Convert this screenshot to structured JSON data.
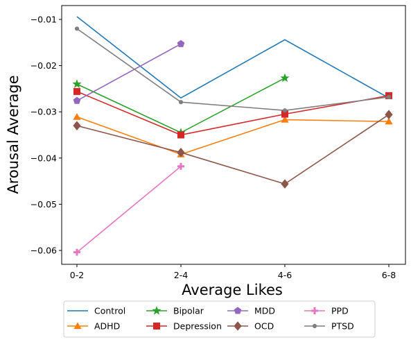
{
  "chart_data": {
    "type": "line",
    "categories": [
      "0-2",
      "2-4",
      "4-6",
      "6-8"
    ],
    "xlabel": "Average Likes",
    "ylabel": "Arousal Average",
    "ylim": [
      -0.063,
      -0.007
    ],
    "yticks": [
      -0.01,
      -0.02,
      -0.03,
      -0.04,
      -0.05,
      -0.06
    ],
    "ytick_labels": [
      "−0.01",
      "−0.02",
      "−0.03",
      "−0.04",
      "−0.05",
      "−0.06"
    ],
    "legend_position": "below",
    "series": [
      {
        "name": "Control",
        "color": "#1f77b4",
        "marker": "none",
        "values": [
          -0.0094,
          -0.027,
          -0.0144,
          -0.027
        ]
      },
      {
        "name": "ADHD",
        "color": "#ff7f0e",
        "marker": "triangle",
        "values": [
          -0.0311,
          -0.0392,
          -0.0317,
          -0.0321
        ]
      },
      {
        "name": "Bipolar",
        "color": "#2ca02c",
        "marker": "star",
        "values": [
          -0.024,
          -0.0345,
          -0.0227,
          null
        ]
      },
      {
        "name": "Depression",
        "color": "#d62728",
        "marker": "square",
        "values": [
          -0.0256,
          -0.035,
          -0.0305,
          -0.0265
        ]
      },
      {
        "name": "MDD",
        "color": "#9467bd",
        "marker": "pentagon",
        "values": [
          -0.0276,
          -0.0153,
          null,
          null
        ]
      },
      {
        "name": "OCD",
        "color": "#8c564b",
        "marker": "diamond",
        "values": [
          -0.033,
          -0.0388,
          -0.0456,
          -0.0306
        ]
      },
      {
        "name": "PPD",
        "color": "#e377c2",
        "marker": "plus",
        "values": [
          -0.0604,
          -0.0418,
          null,
          null
        ]
      },
      {
        "name": "PTSD",
        "color": "#7f7f7f",
        "marker": "dot",
        "values": [
          -0.012,
          -0.0279,
          -0.0297,
          -0.0268
        ]
      }
    ]
  }
}
